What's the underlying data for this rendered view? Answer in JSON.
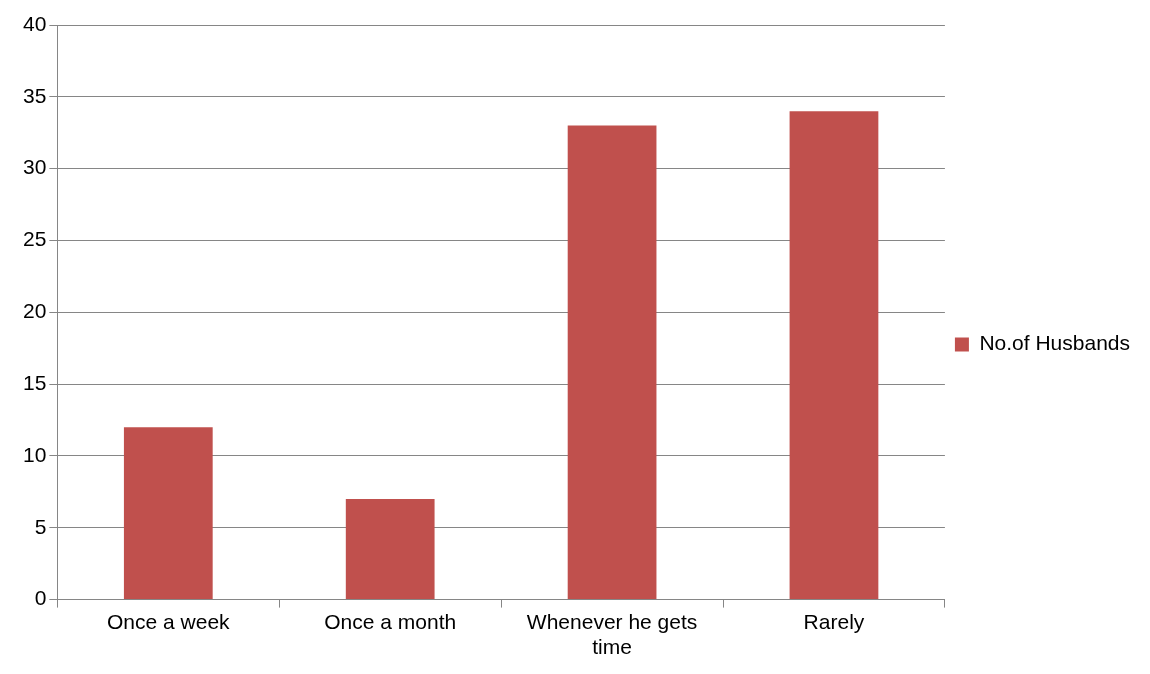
{
  "chart_data": {
    "type": "bar",
    "categories": [
      "Once a week",
      "Once a month",
      "Whenever he gets time",
      "Rarely"
    ],
    "series": [
      {
        "name": "No.of Husbands",
        "color": "#c0504d",
        "values": [
          12,
          7,
          33,
          34
        ]
      }
    ],
    "ylim": [
      0,
      40
    ],
    "yticks": [
      0,
      5,
      10,
      15,
      20,
      25,
      30,
      35,
      40
    ],
    "grid": "y",
    "legend": "right"
  }
}
